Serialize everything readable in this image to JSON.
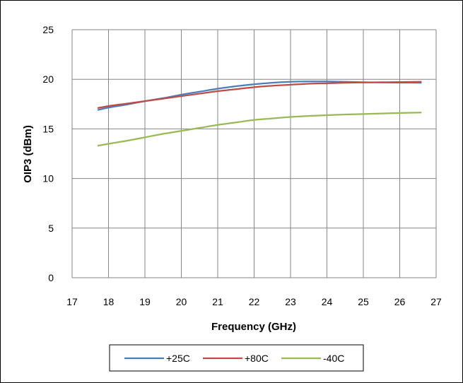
{
  "chart_data": {
    "type": "line",
    "title": "",
    "xlabel": "Frequency (GHz)",
    "ylabel": "OIP3 (dBm)",
    "xlim": [
      17,
      27
    ],
    "ylim": [
      0,
      25
    ],
    "xticks": [
      17,
      18,
      19,
      20,
      21,
      22,
      23,
      24,
      25,
      26,
      27
    ],
    "yticks": [
      0,
      5,
      10,
      15,
      20,
      25
    ],
    "grid": true,
    "legend_position": "bottom",
    "series": [
      {
        "name": "+25C",
        "color": "#4a7ebb",
        "x": [
          17.7,
          18,
          18.5,
          19,
          19.5,
          20,
          20.5,
          21,
          21.5,
          22,
          22.5,
          23,
          23.5,
          24,
          24.5,
          25,
          25.5,
          26,
          26.6
        ],
        "y": [
          16.9,
          17.15,
          17.45,
          17.8,
          18.1,
          18.45,
          18.75,
          19.05,
          19.3,
          19.5,
          19.65,
          19.75,
          19.78,
          19.78,
          19.75,
          19.7,
          19.68,
          19.66,
          19.65
        ]
      },
      {
        "name": "+80C",
        "color": "#be4b48",
        "x": [
          17.7,
          18,
          18.5,
          19,
          19.5,
          20,
          20.5,
          21,
          21.5,
          22,
          22.5,
          23,
          23.5,
          24,
          24.5,
          25,
          25.5,
          26,
          26.6
        ],
        "y": [
          17.1,
          17.3,
          17.55,
          17.8,
          18.05,
          18.3,
          18.55,
          18.8,
          19.0,
          19.2,
          19.35,
          19.45,
          19.55,
          19.6,
          19.65,
          19.68,
          19.7,
          19.72,
          19.75
        ]
      },
      {
        "name": "-40C",
        "color": "#98b954",
        "x": [
          17.7,
          18,
          18.5,
          19,
          19.5,
          20,
          20.5,
          21,
          21.5,
          22,
          22.5,
          23,
          23.5,
          24,
          24.5,
          25,
          25.5,
          26,
          26.6
        ],
        "y": [
          13.3,
          13.5,
          13.8,
          14.15,
          14.5,
          14.8,
          15.1,
          15.4,
          15.65,
          15.9,
          16.05,
          16.2,
          16.3,
          16.38,
          16.45,
          16.5,
          16.55,
          16.6,
          16.65
        ]
      }
    ]
  }
}
